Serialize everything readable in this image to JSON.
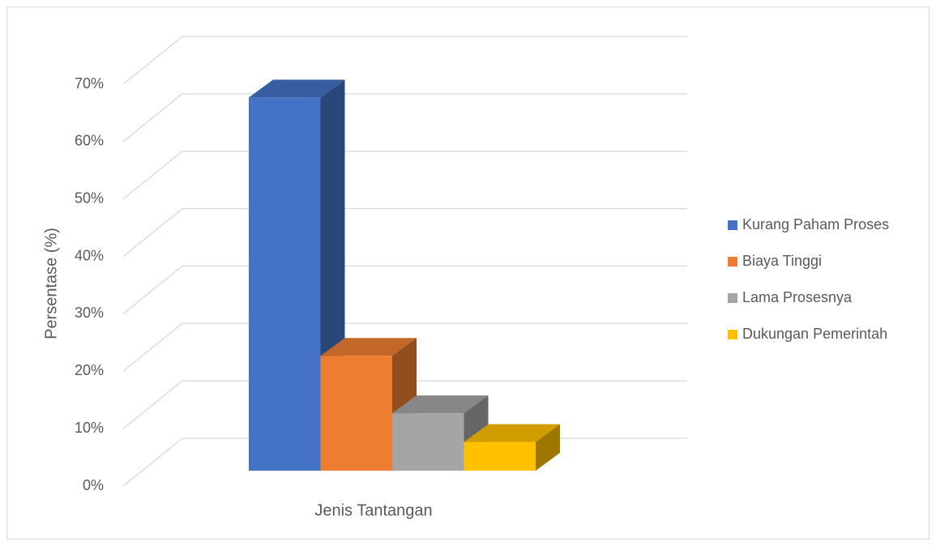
{
  "chart_data": {
    "type": "bar3d",
    "xlabel": "Jenis Tantangan",
    "ylabel": "Persentase (%)",
    "series": [
      {
        "name": "Kurang Paham Proses",
        "color": "#4472c4",
        "values": [
          65
        ]
      },
      {
        "name": "Biaya Tinggi",
        "color": "#ed7d31",
        "values": [
          20
        ]
      },
      {
        "name": "Lama Prosesnya",
        "color": "#a5a5a5",
        "values": [
          10
        ]
      },
      {
        "name": "Dukungan Pemerintah",
        "color": "#ffc000",
        "values": [
          5
        ]
      }
    ],
    "ylim": [
      0,
      70
    ],
    "yticks": [
      {
        "value": 0,
        "label": "0%"
      },
      {
        "value": 10,
        "label": "10%"
      },
      {
        "value": 20,
        "label": "20%"
      },
      {
        "value": 30,
        "label": "30%"
      },
      {
        "value": 40,
        "label": "40%"
      },
      {
        "value": 50,
        "label": "50%"
      },
      {
        "value": 60,
        "label": "60%"
      },
      {
        "value": 70,
        "label": "70%"
      }
    ],
    "grid": true,
    "legend": "right"
  }
}
